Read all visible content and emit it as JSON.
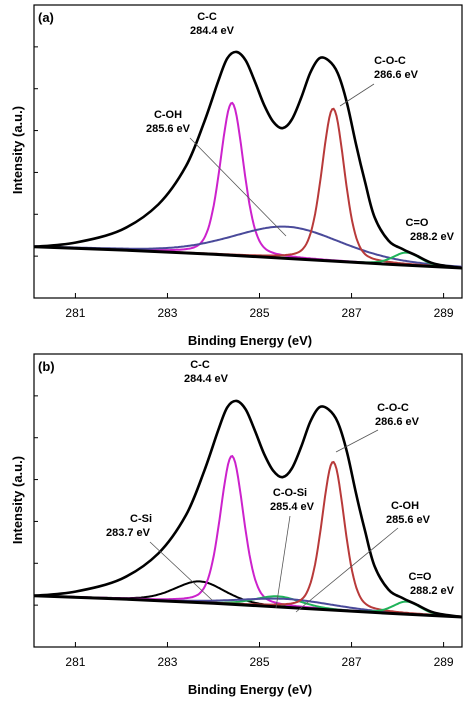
{
  "chart_data": [
    {
      "type": "line",
      "panel_label": "(a)",
      "xlabel": "Binding Energy (eV)",
      "ylabel": "Intensity (a.u.)",
      "xlim": [
        280.1,
        289.4
      ],
      "ylim": [
        0,
        1.1
      ],
      "xticks": [
        281,
        283,
        285,
        287,
        289
      ],
      "envelope": {
        "x": [
          280.1,
          281.0,
          282.0,
          282.8,
          283.4,
          283.8,
          284.1,
          284.3,
          284.5,
          284.7,
          284.9,
          285.1,
          285.3,
          285.5,
          285.7,
          285.9,
          286.1,
          286.3,
          286.5,
          286.7,
          286.9,
          287.1,
          287.3,
          287.5,
          287.8,
          288.1,
          288.4,
          288.8,
          289.4
        ],
        "y": [
          0.1,
          0.12,
          0.18,
          0.3,
          0.48,
          0.69,
          0.88,
          0.99,
          1.02,
          0.98,
          0.88,
          0.77,
          0.69,
          0.66,
          0.7,
          0.8,
          0.92,
          0.99,
          0.98,
          0.92,
          0.78,
          0.58,
          0.4,
          0.24,
          0.13,
          0.09,
          0.06,
          0.02,
          0.0
        ]
      },
      "baseline": {
        "x": [
          280.1,
          282.0,
          284.0,
          286.0,
          288.0,
          289.4
        ],
        "y": [
          0.1,
          0.085,
          0.065,
          0.04,
          0.015,
          0.0
        ]
      },
      "peaks": [
        {
          "name": "C-C",
          "center": 284.4,
          "height": 0.72,
          "fwhm": 0.6,
          "color": "#cc22cc"
        },
        {
          "name": "C-OH",
          "center": 285.6,
          "height": 0.15,
          "fwhm": 2.8,
          "color": "#4a4a9a"
        },
        {
          "name": "C-O-C",
          "center": 286.6,
          "height": 0.72,
          "fwhm": 0.58,
          "color": "#b83a3a"
        },
        {
          "name": "C=O",
          "center": 288.2,
          "height": 0.06,
          "fwhm": 0.7,
          "color": "#1fb35a"
        }
      ],
      "annotations": [
        {
          "name": "C-C",
          "value": "284.4 eV"
        },
        {
          "name": "C-OH",
          "value": "285.6 eV"
        },
        {
          "name": "C-O-C",
          "value": "286.6 eV"
        },
        {
          "name": "C=O",
          "value": "288.2 eV"
        }
      ]
    },
    {
      "type": "line",
      "panel_label": "(b)",
      "xlabel": "Binding Energy (eV)",
      "ylabel": "Intensity (a.u.)",
      "xlim": [
        280.1,
        289.4
      ],
      "ylim": [
        0,
        1.1
      ],
      "xticks": [
        281,
        283,
        285,
        287,
        289
      ],
      "envelope": {
        "x": [
          280.1,
          281.0,
          282.0,
          282.8,
          283.4,
          283.8,
          284.1,
          284.3,
          284.5,
          284.7,
          284.9,
          285.1,
          285.3,
          285.5,
          285.7,
          285.9,
          286.1,
          286.3,
          286.5,
          286.7,
          286.9,
          287.1,
          287.3,
          287.5,
          287.8,
          288.1,
          288.4,
          288.8,
          289.4
        ],
        "y": [
          0.1,
          0.12,
          0.18,
          0.3,
          0.48,
          0.69,
          0.88,
          0.99,
          1.02,
          0.98,
          0.88,
          0.77,
          0.69,
          0.66,
          0.7,
          0.8,
          0.92,
          0.99,
          0.98,
          0.92,
          0.78,
          0.58,
          0.4,
          0.24,
          0.13,
          0.09,
          0.06,
          0.02,
          0.0
        ]
      },
      "baseline": {
        "x": [
          280.1,
          282.0,
          284.0,
          286.0,
          288.0,
          289.4
        ],
        "y": [
          0.1,
          0.085,
          0.065,
          0.04,
          0.015,
          0.0
        ]
      },
      "peaks": [
        {
          "name": "C-Si",
          "center": 283.7,
          "height": 0.1,
          "fwhm": 1.3,
          "color": "#000000"
        },
        {
          "name": "C-C",
          "center": 284.4,
          "height": 0.7,
          "fwhm": 0.6,
          "color": "#cc22cc"
        },
        {
          "name": "C-O-Si",
          "center": 285.4,
          "height": 0.05,
          "fwhm": 1.2,
          "color": "#1fb35a"
        },
        {
          "name": "C-OH",
          "center": 285.6,
          "height": 0.04,
          "fwhm": 2.4,
          "color": "#4a4a9a"
        },
        {
          "name": "C-O-C",
          "center": 286.6,
          "height": 0.7,
          "fwhm": 0.58,
          "color": "#b83a3a"
        },
        {
          "name": "C=O",
          "center": 288.2,
          "height": 0.06,
          "fwhm": 0.7,
          "color": "#1fb35a"
        }
      ],
      "annotations": [
        {
          "name": "C-C",
          "value": "284.4 eV"
        },
        {
          "name": "C-Si",
          "value": "283.7 eV"
        },
        {
          "name": "C-O-Si",
          "value": "285.4 eV"
        },
        {
          "name": "C-O-C",
          "value": "286.6 eV"
        },
        {
          "name": "C-OH",
          "value": "285.6 eV"
        },
        {
          "name": "C=O",
          "value": "288.2 eV"
        }
      ]
    }
  ]
}
